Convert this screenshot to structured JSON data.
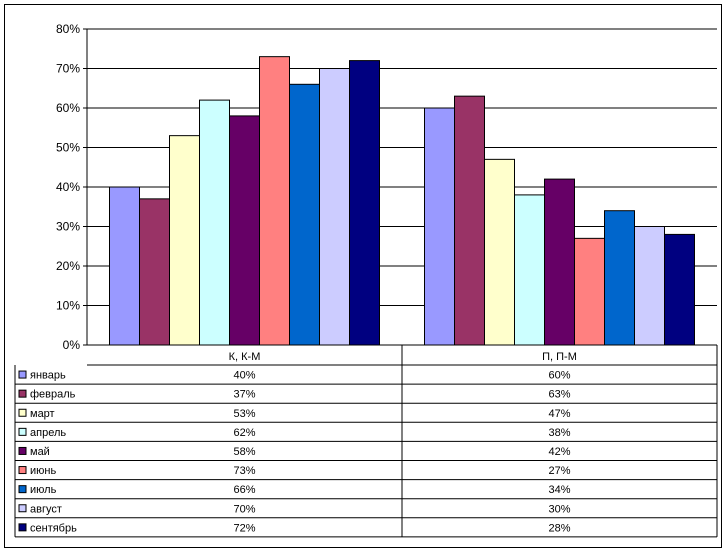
{
  "chart_data": {
    "type": "bar",
    "title": "",
    "xlabel": "",
    "ylabel": "",
    "categories": [
      "К, К-М",
      "П, П-М"
    ],
    "ylim": [
      0,
      80
    ],
    "yticks": [
      "0%",
      "10%",
      "20%",
      "30%",
      "40%",
      "50%",
      "60%",
      "70%",
      "80%"
    ],
    "grid": true,
    "legend": "data-table",
    "series": [
      {
        "name": "январь",
        "color": "#9999ff",
        "values": [
          40,
          60
        ],
        "labels": [
          "40%",
          "60%"
        ]
      },
      {
        "name": "февраль",
        "color": "#993366",
        "values": [
          37,
          63
        ],
        "labels": [
          "37%",
          "63%"
        ]
      },
      {
        "name": "март",
        "color": "#ffffcc",
        "values": [
          53,
          47
        ],
        "labels": [
          "53%",
          "47%"
        ]
      },
      {
        "name": "апрель",
        "color": "#ccffff",
        "values": [
          62,
          38
        ],
        "labels": [
          "62%",
          "38%"
        ]
      },
      {
        "name": "май",
        "color": "#660066",
        "values": [
          58,
          42
        ],
        "labels": [
          "58%",
          "42%"
        ]
      },
      {
        "name": "июнь",
        "color": "#ff8080",
        "values": [
          73,
          27
        ],
        "labels": [
          "73%",
          "27%"
        ]
      },
      {
        "name": "июль",
        "color": "#0066cc",
        "values": [
          66,
          34
        ],
        "labels": [
          "66%",
          "34%"
        ]
      },
      {
        "name": "август",
        "color": "#ccccff",
        "values": [
          70,
          30
        ],
        "labels": [
          "70%",
          "30%"
        ]
      },
      {
        "name": "сентябрь",
        "color": "#000080",
        "values": [
          72,
          28
        ],
        "labels": [
          "72%",
          "28%"
        ]
      }
    ]
  }
}
